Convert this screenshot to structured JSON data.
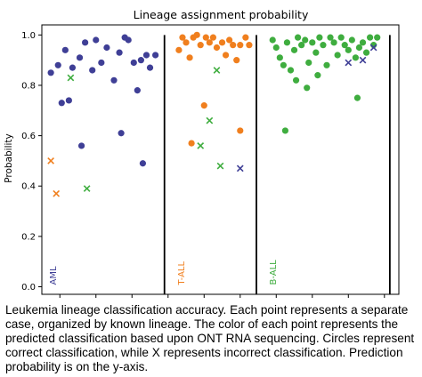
{
  "chart_data": {
    "type": "scatter",
    "title": "Lineage assignment probability",
    "xlabel": "",
    "ylabel": "Probability",
    "ylim": [
      -0.03,
      1.04
    ],
    "yticks": [
      0.0,
      0.2,
      0.4,
      0.6,
      0.8,
      1.0
    ],
    "ytick_labels": [
      "0.0",
      "0.2",
      "0.4",
      "0.6",
      "0.8",
      "1.0"
    ],
    "grid": false,
    "colors": {
      "AML": "#3f3f96",
      "T-ALL": "#f07f1e",
      "B-ALL": "#3fad3f"
    },
    "groups": [
      {
        "label": "AML",
        "points": [
          {
            "x": 0.5,
            "y": 0.85,
            "pred": "AML",
            "marker": "o"
          },
          {
            "x": 0.9,
            "y": 0.88,
            "pred": "AML",
            "marker": "o"
          },
          {
            "x": 1.3,
            "y": 0.94,
            "pred": "AML",
            "marker": "o"
          },
          {
            "x": 1.7,
            "y": 0.87,
            "pred": "AML",
            "marker": "o"
          },
          {
            "x": 2.1,
            "y": 0.91,
            "pred": "AML",
            "marker": "o"
          },
          {
            "x": 2.4,
            "y": 0.97,
            "pred": "AML",
            "marker": "o"
          },
          {
            "x": 2.8,
            "y": 0.86,
            "pred": "AML",
            "marker": "o"
          },
          {
            "x": 3.0,
            "y": 0.98,
            "pred": "AML",
            "marker": "o"
          },
          {
            "x": 3.3,
            "y": 0.89,
            "pred": "AML",
            "marker": "o"
          },
          {
            "x": 3.6,
            "y": 0.95,
            "pred": "AML",
            "marker": "o"
          },
          {
            "x": 4.0,
            "y": 0.82,
            "pred": "AML",
            "marker": "o"
          },
          {
            "x": 4.3,
            "y": 0.93,
            "pred": "AML",
            "marker": "o"
          },
          {
            "x": 4.6,
            "y": 0.99,
            "pred": "AML",
            "marker": "o"
          },
          {
            "x": 4.8,
            "y": 0.98,
            "pred": "AML",
            "marker": "o"
          },
          {
            "x": 5.1,
            "y": 0.89,
            "pred": "AML",
            "marker": "o"
          },
          {
            "x": 5.3,
            "y": 0.78,
            "pred": "AML",
            "marker": "o"
          },
          {
            "x": 5.5,
            "y": 0.9,
            "pred": "AML",
            "marker": "o"
          },
          {
            "x": 5.8,
            "y": 0.92,
            "pred": "AML",
            "marker": "o"
          },
          {
            "x": 6.0,
            "y": 0.87,
            "pred": "AML",
            "marker": "o"
          },
          {
            "x": 6.3,
            "y": 0.92,
            "pred": "AML",
            "marker": "o"
          },
          {
            "x": 1.1,
            "y": 0.73,
            "pred": "AML",
            "marker": "o"
          },
          {
            "x": 1.5,
            "y": 0.74,
            "pred": "AML",
            "marker": "o"
          },
          {
            "x": 2.2,
            "y": 0.56,
            "pred": "AML",
            "marker": "o"
          },
          {
            "x": 4.4,
            "y": 0.61,
            "pred": "AML",
            "marker": "o"
          },
          {
            "x": 5.6,
            "y": 0.49,
            "pred": "AML",
            "marker": "o"
          },
          {
            "x": 1.6,
            "y": 0.83,
            "pred": "B-ALL",
            "marker": "x"
          },
          {
            "x": 0.5,
            "y": 0.5,
            "pred": "T-ALL",
            "marker": "x"
          },
          {
            "x": 0.8,
            "y": 0.37,
            "pred": "T-ALL",
            "marker": "x"
          },
          {
            "x": 2.5,
            "y": 0.39,
            "pred": "B-ALL",
            "marker": "x"
          }
        ]
      },
      {
        "label": "T-ALL",
        "points": [
          {
            "x": 7.6,
            "y": 0.94,
            "pred": "T-ALL",
            "marker": "o"
          },
          {
            "x": 7.8,
            "y": 0.99,
            "pred": "T-ALL",
            "marker": "o"
          },
          {
            "x": 8.0,
            "y": 0.97,
            "pred": "T-ALL",
            "marker": "o"
          },
          {
            "x": 8.2,
            "y": 0.91,
            "pred": "T-ALL",
            "marker": "o"
          },
          {
            "x": 8.4,
            "y": 0.99,
            "pred": "T-ALL",
            "marker": "o"
          },
          {
            "x": 8.6,
            "y": 1.0,
            "pred": "T-ALL",
            "marker": "o"
          },
          {
            "x": 8.8,
            "y": 0.96,
            "pred": "T-ALL",
            "marker": "o"
          },
          {
            "x": 9.1,
            "y": 0.99,
            "pred": "T-ALL",
            "marker": "o"
          },
          {
            "x": 9.3,
            "y": 0.97,
            "pred": "T-ALL",
            "marker": "o"
          },
          {
            "x": 9.5,
            "y": 0.99,
            "pred": "T-ALL",
            "marker": "o"
          },
          {
            "x": 9.7,
            "y": 0.95,
            "pred": "T-ALL",
            "marker": "o"
          },
          {
            "x": 10.0,
            "y": 0.97,
            "pred": "T-ALL",
            "marker": "o"
          },
          {
            "x": 10.2,
            "y": 0.92,
            "pred": "T-ALL",
            "marker": "o"
          },
          {
            "x": 10.4,
            "y": 0.98,
            "pred": "T-ALL",
            "marker": "o"
          },
          {
            "x": 10.6,
            "y": 0.96,
            "pred": "T-ALL",
            "marker": "o"
          },
          {
            "x": 10.8,
            "y": 0.9,
            "pred": "T-ALL",
            "marker": "o"
          },
          {
            "x": 11.0,
            "y": 0.96,
            "pred": "T-ALL",
            "marker": "o"
          },
          {
            "x": 11.3,
            "y": 0.99,
            "pred": "T-ALL",
            "marker": "o"
          },
          {
            "x": 11.5,
            "y": 0.96,
            "pred": "T-ALL",
            "marker": "o"
          },
          {
            "x": 8.3,
            "y": 0.57,
            "pred": "T-ALL",
            "marker": "o"
          },
          {
            "x": 9.0,
            "y": 0.72,
            "pred": "T-ALL",
            "marker": "o"
          },
          {
            "x": 11.0,
            "y": 0.62,
            "pred": "T-ALL",
            "marker": "o"
          },
          {
            "x": 9.7,
            "y": 0.86,
            "pred": "B-ALL",
            "marker": "x"
          },
          {
            "x": 9.3,
            "y": 0.66,
            "pred": "B-ALL",
            "marker": "x"
          },
          {
            "x": 8.8,
            "y": 0.56,
            "pred": "B-ALL",
            "marker": "x"
          },
          {
            "x": 9.9,
            "y": 0.48,
            "pred": "B-ALL",
            "marker": "x"
          },
          {
            "x": 11.0,
            "y": 0.47,
            "pred": "AML",
            "marker": "x"
          }
        ]
      },
      {
        "label": "B-ALL",
        "points": [
          {
            "x": 12.8,
            "y": 0.98,
            "pred": "B-ALL",
            "marker": "o"
          },
          {
            "x": 13.0,
            "y": 0.95,
            "pred": "B-ALL",
            "marker": "o"
          },
          {
            "x": 13.2,
            "y": 0.91,
            "pred": "B-ALL",
            "marker": "o"
          },
          {
            "x": 13.4,
            "y": 0.88,
            "pred": "B-ALL",
            "marker": "o"
          },
          {
            "x": 13.6,
            "y": 0.97,
            "pred": "B-ALL",
            "marker": "o"
          },
          {
            "x": 13.8,
            "y": 0.86,
            "pred": "B-ALL",
            "marker": "o"
          },
          {
            "x": 14.0,
            "y": 0.94,
            "pred": "B-ALL",
            "marker": "o"
          },
          {
            "x": 14.2,
            "y": 0.99,
            "pred": "B-ALL",
            "marker": "o"
          },
          {
            "x": 14.4,
            "y": 0.96,
            "pred": "B-ALL",
            "marker": "o"
          },
          {
            "x": 14.6,
            "y": 0.98,
            "pred": "B-ALL",
            "marker": "o"
          },
          {
            "x": 14.8,
            "y": 0.89,
            "pred": "B-ALL",
            "marker": "o"
          },
          {
            "x": 15.0,
            "y": 0.97,
            "pred": "B-ALL",
            "marker": "o"
          },
          {
            "x": 15.2,
            "y": 0.93,
            "pred": "B-ALL",
            "marker": "o"
          },
          {
            "x": 15.4,
            "y": 0.99,
            "pred": "B-ALL",
            "marker": "o"
          },
          {
            "x": 15.6,
            "y": 0.96,
            "pred": "B-ALL",
            "marker": "o"
          },
          {
            "x": 15.8,
            "y": 0.88,
            "pred": "B-ALL",
            "marker": "o"
          },
          {
            "x": 16.0,
            "y": 0.99,
            "pred": "B-ALL",
            "marker": "o"
          },
          {
            "x": 16.2,
            "y": 0.97,
            "pred": "B-ALL",
            "marker": "o"
          },
          {
            "x": 16.4,
            "y": 0.92,
            "pred": "B-ALL",
            "marker": "o"
          },
          {
            "x": 16.6,
            "y": 0.99,
            "pred": "B-ALL",
            "marker": "o"
          },
          {
            "x": 16.8,
            "y": 0.96,
            "pred": "B-ALL",
            "marker": "o"
          },
          {
            "x": 17.0,
            "y": 0.94,
            "pred": "B-ALL",
            "marker": "o"
          },
          {
            "x": 17.2,
            "y": 0.98,
            "pred": "B-ALL",
            "marker": "o"
          },
          {
            "x": 17.4,
            "y": 0.91,
            "pred": "B-ALL",
            "marker": "o"
          },
          {
            "x": 17.6,
            "y": 0.95,
            "pred": "B-ALL",
            "marker": "o"
          },
          {
            "x": 17.8,
            "y": 0.97,
            "pred": "B-ALL",
            "marker": "o"
          },
          {
            "x": 18.0,
            "y": 0.93,
            "pred": "B-ALL",
            "marker": "o"
          },
          {
            "x": 18.2,
            "y": 0.99,
            "pred": "B-ALL",
            "marker": "o"
          },
          {
            "x": 18.4,
            "y": 0.96,
            "pred": "B-ALL",
            "marker": "o"
          },
          {
            "x": 18.6,
            "y": 0.99,
            "pred": "B-ALL",
            "marker": "o"
          },
          {
            "x": 13.5,
            "y": 0.62,
            "pred": "B-ALL",
            "marker": "o"
          },
          {
            "x": 14.1,
            "y": 0.82,
            "pred": "B-ALL",
            "marker": "o"
          },
          {
            "x": 14.7,
            "y": 0.79,
            "pred": "B-ALL",
            "marker": "o"
          },
          {
            "x": 15.3,
            "y": 0.84,
            "pred": "B-ALL",
            "marker": "o"
          },
          {
            "x": 17.5,
            "y": 0.75,
            "pred": "B-ALL",
            "marker": "o"
          },
          {
            "x": 17.0,
            "y": 0.89,
            "pred": "AML",
            "marker": "x"
          },
          {
            "x": 17.8,
            "y": 0.9,
            "pred": "AML",
            "marker": "x"
          },
          {
            "x": 18.4,
            "y": 0.95,
            "pred": "AML",
            "marker": "x"
          }
        ]
      }
    ],
    "separators": [
      6.8,
      11.9,
      19.3
    ],
    "xlim": [
      0,
      19.8
    ],
    "group_label_x": [
      0.4,
      7.5,
      12.6
    ]
  },
  "caption": "Leukemia lineage classification accuracy. Each point represents a separate case, organized by known lineage. The color of each point represents the predicted classification based upon ONT RNA sequencing. Circles represent correct classification, while X represents incorrect classification. Prediction probability is on the y-axis."
}
